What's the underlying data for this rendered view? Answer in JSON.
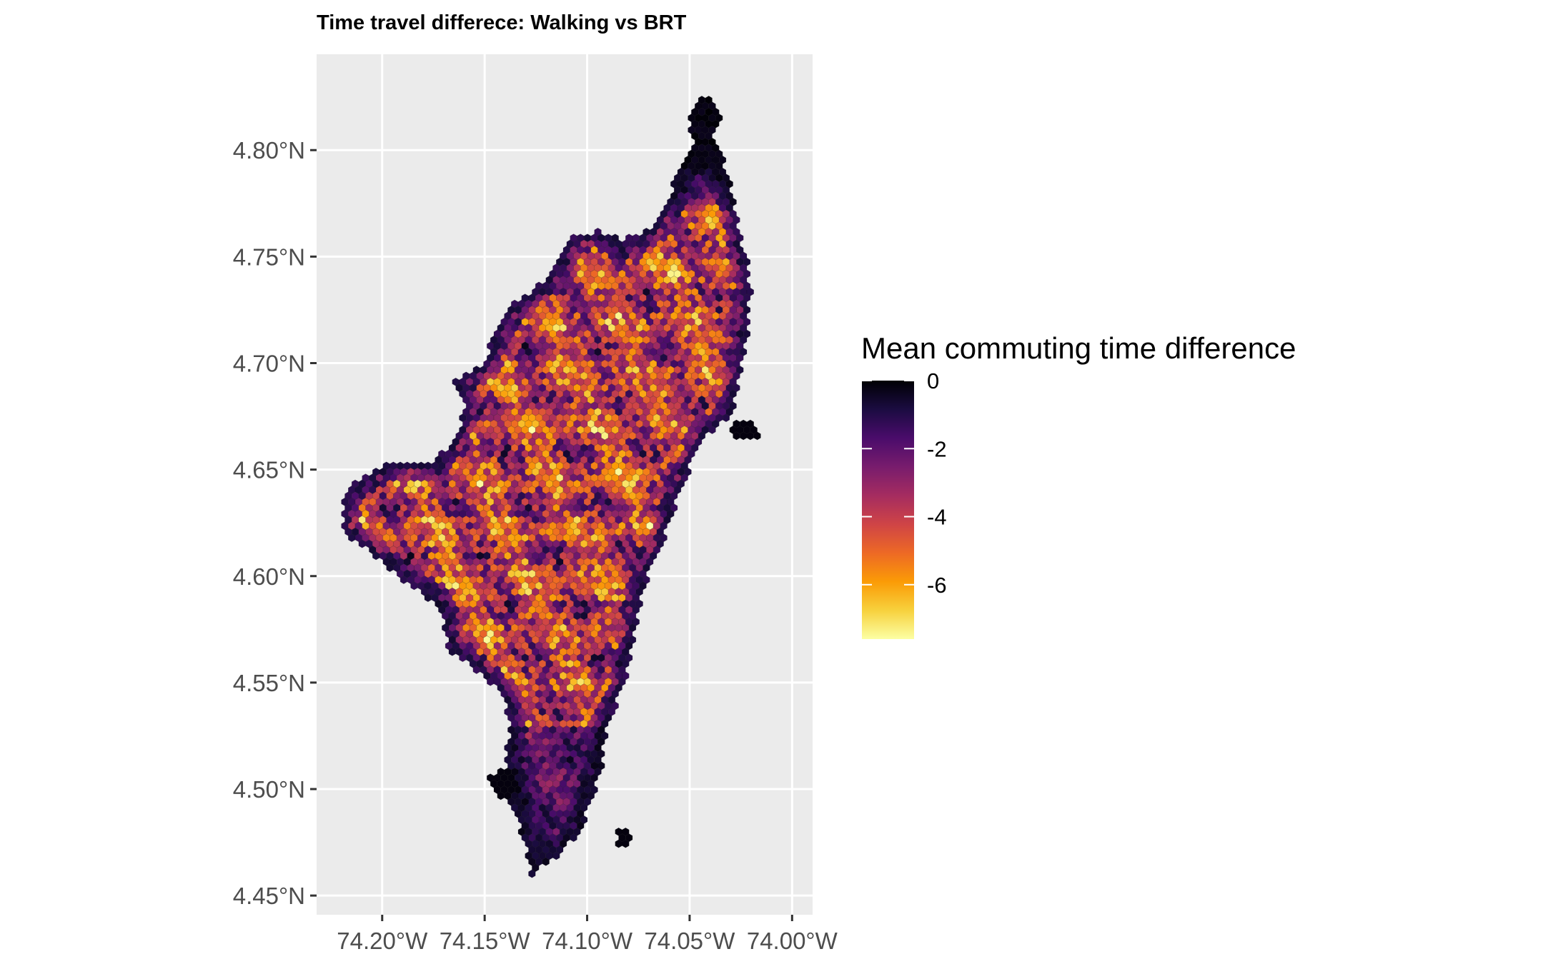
{
  "title": "Time travel differece: Walking vs BRT",
  "map": {
    "lon_range": [
      -74.232,
      -73.99
    ],
    "lat_range": [
      4.441,
      4.845
    ],
    "x_ticks": [
      {
        "value": -74.2,
        "label": "74.20°W"
      },
      {
        "value": -74.15,
        "label": "74.15°W"
      },
      {
        "value": -74.1,
        "label": "74.10°W"
      },
      {
        "value": -74.05,
        "label": "74.05°W"
      },
      {
        "value": -74.0,
        "label": "74.00°W"
      }
    ],
    "y_ticks": [
      {
        "value": 4.8,
        "label": "4.80°N"
      },
      {
        "value": 4.75,
        "label": "4.75°N"
      },
      {
        "value": 4.7,
        "label": "4.70°N"
      },
      {
        "value": 4.65,
        "label": "4.65°N"
      },
      {
        "value": 4.6,
        "label": "4.60°N"
      },
      {
        "value": 4.55,
        "label": "4.55°N"
      },
      {
        "value": 4.5,
        "label": "4.50°N"
      },
      {
        "value": 4.45,
        "label": "4.45°N"
      }
    ],
    "panel_background": "#ebebeb",
    "grid_color": "#ffffff",
    "palette": "inferno"
  },
  "legend": {
    "title": "Mean commuting time difference",
    "range": [
      -7.6,
      0
    ],
    "breaks": [
      {
        "value": 0,
        "label": "0"
      },
      {
        "value": -2,
        "label": "-2"
      },
      {
        "value": -4,
        "label": "-4"
      },
      {
        "value": -6,
        "label": "-6"
      }
    ],
    "colors": [
      "#000004",
      "#1b0c41",
      "#4a0c6b",
      "#781c6d",
      "#a52c60",
      "#cf4446",
      "#ed6925",
      "#fb9b06",
      "#f7d13d",
      "#fcffa4"
    ]
  }
}
